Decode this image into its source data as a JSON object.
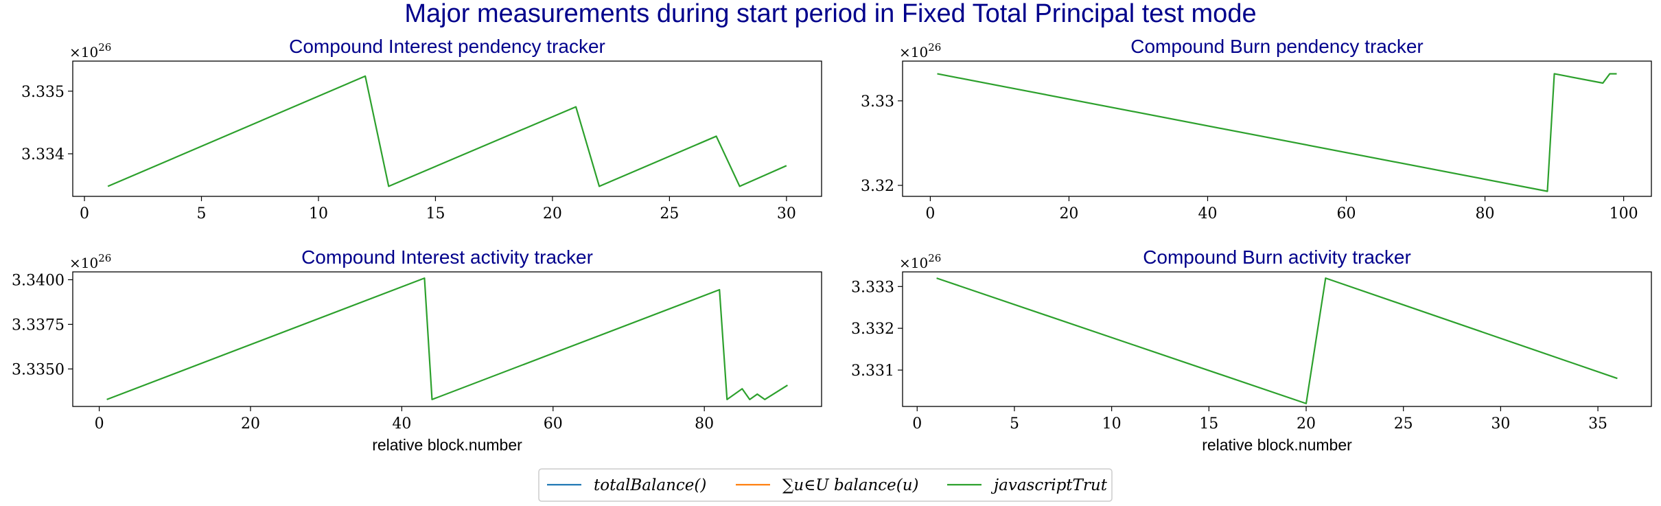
{
  "suptitle": "Major measurements during start period in Fixed Total Principal test mode",
  "legend": {
    "placement": "bottom-center",
    "entries": [
      {
        "label": "totalBalance()",
        "color": "#1f77b4"
      },
      {
        "label": "∑u∈U balance(u)",
        "color": "#ff7f0e"
      },
      {
        "label": "javascriptTrut",
        "color": "#2ca02c"
      }
    ]
  },
  "chart_data": [
    {
      "type": "line",
      "title": "Compound Interest pendency tracker",
      "xlabel": "",
      "ylabel": "",
      "multiplier": "×10^26",
      "xlim": [
        -0.5,
        31.5
      ],
      "ylim": [
        3.33332,
        3.33548
      ],
      "xticks": [
        0,
        5,
        10,
        15,
        20,
        25,
        30
      ],
      "yticks": [
        3.334,
        3.335
      ],
      "ytick_labels": [
        "3.334",
        "3.335"
      ],
      "grid": false,
      "series": [
        {
          "color": "#2ca02c",
          "x": [
            1,
            12,
            13,
            21,
            22,
            27,
            28,
            30
          ],
          "y": [
            3.33348,
            3.33524,
            3.33348,
            3.33475,
            3.33348,
            3.33428,
            3.33348,
            3.33381
          ]
        }
      ]
    },
    {
      "type": "line",
      "title": "Compound Burn pendency tracker",
      "xlabel": "",
      "ylabel": "",
      "multiplier": "×10^26",
      "xlim": [
        -4,
        104
      ],
      "ylim": [
        3.3187,
        3.3347
      ],
      "xticks": [
        0,
        20,
        40,
        60,
        80,
        100
      ],
      "yticks": [
        3.32,
        3.33
      ],
      "ytick_labels": [
        "3.32",
        "3.33"
      ],
      "grid": false,
      "series": [
        {
          "color": "#2ca02c",
          "x": [
            1,
            89,
            90,
            97,
            98,
            99
          ],
          "y": [
            3.3332,
            3.3193,
            3.3332,
            3.3321,
            3.3332,
            3.3332
          ]
        }
      ]
    },
    {
      "type": "line",
      "title": "Compound Interest activity tracker",
      "xlabel": "relative block.number",
      "ylabel": "",
      "multiplier": "×10^26",
      "xlim": [
        -3.5,
        95.5
      ],
      "ylim": [
        3.3329,
        3.34044
      ],
      "xticks": [
        0,
        20,
        40,
        60,
        80
      ],
      "yticks": [
        3.335,
        3.3375,
        3.34
      ],
      "ytick_labels": [
        "3.3350",
        "3.3375",
        "3.3400"
      ],
      "grid": false,
      "series": [
        {
          "color": "#2ca02c",
          "x": [
            1,
            43,
            44,
            82,
            83,
            85,
            86,
            87,
            88,
            91
          ],
          "y": [
            3.33329,
            3.34009,
            3.33329,
            3.33944,
            3.33329,
            3.33389,
            3.33329,
            3.33359,
            3.33329,
            3.33409
          ]
        }
      ]
    },
    {
      "type": "line",
      "title": "Compound Burn activity tracker",
      "xlabel": "relative block.number",
      "ylabel": "",
      "multiplier": "×10^26",
      "xlim": [
        -0.75,
        37.75
      ],
      "ylim": [
        3.33013,
        3.33335
      ],
      "xticks": [
        0,
        5,
        10,
        15,
        20,
        25,
        30,
        35
      ],
      "yticks": [
        3.331,
        3.332,
        3.333
      ],
      "ytick_labels": [
        "3.331",
        "3.332",
        "3.333"
      ],
      "grid": false,
      "series": [
        {
          "color": "#2ca02c",
          "x": [
            1,
            20,
            21,
            36
          ],
          "y": [
            3.3332,
            3.3302,
            3.3332,
            3.3308
          ]
        }
      ]
    }
  ]
}
